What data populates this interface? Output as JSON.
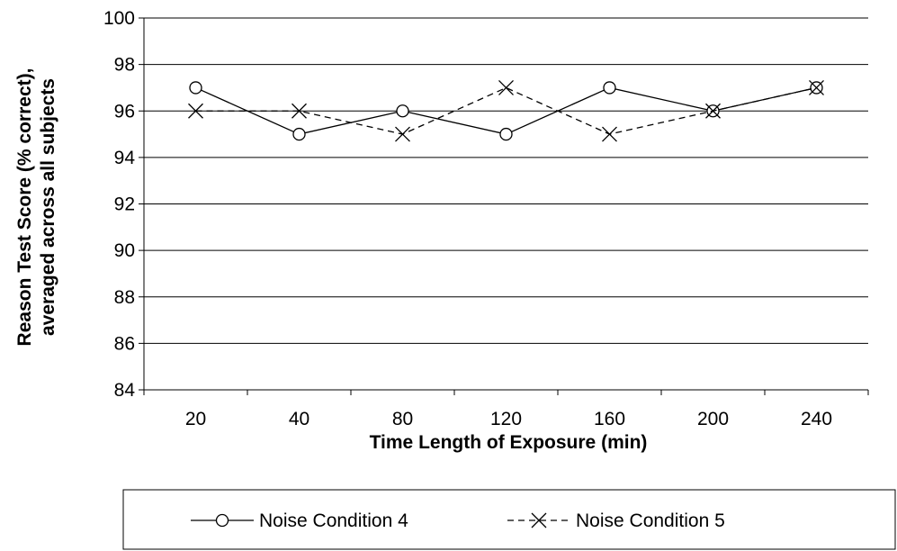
{
  "chart_data": {
    "type": "line",
    "categories": [
      "20",
      "40",
      "80",
      "120",
      "160",
      "200",
      "240"
    ],
    "series": [
      {
        "name": "Noise Condition 4",
        "values": [
          97,
          95,
          96,
          95,
          97,
          96,
          97
        ],
        "marker": "circle",
        "line_style": "solid",
        "color": "#000000"
      },
      {
        "name": "Noise Condition 5",
        "values": [
          96,
          96,
          95,
          97,
          95,
          96,
          97
        ],
        "marker": "x",
        "line_style": "dashed",
        "color": "#000000"
      }
    ],
    "title": "",
    "xlabel": "Time Length of Exposure (min)",
    "ylabel_line1": "Reason Test Score (% correct),",
    "ylabel_line2": "averaged across all subjects",
    "ylim": [
      84,
      100
    ],
    "yticks": [
      84,
      86,
      88,
      90,
      92,
      94,
      96,
      98,
      100
    ],
    "grid": true,
    "legend_position": "bottom"
  }
}
